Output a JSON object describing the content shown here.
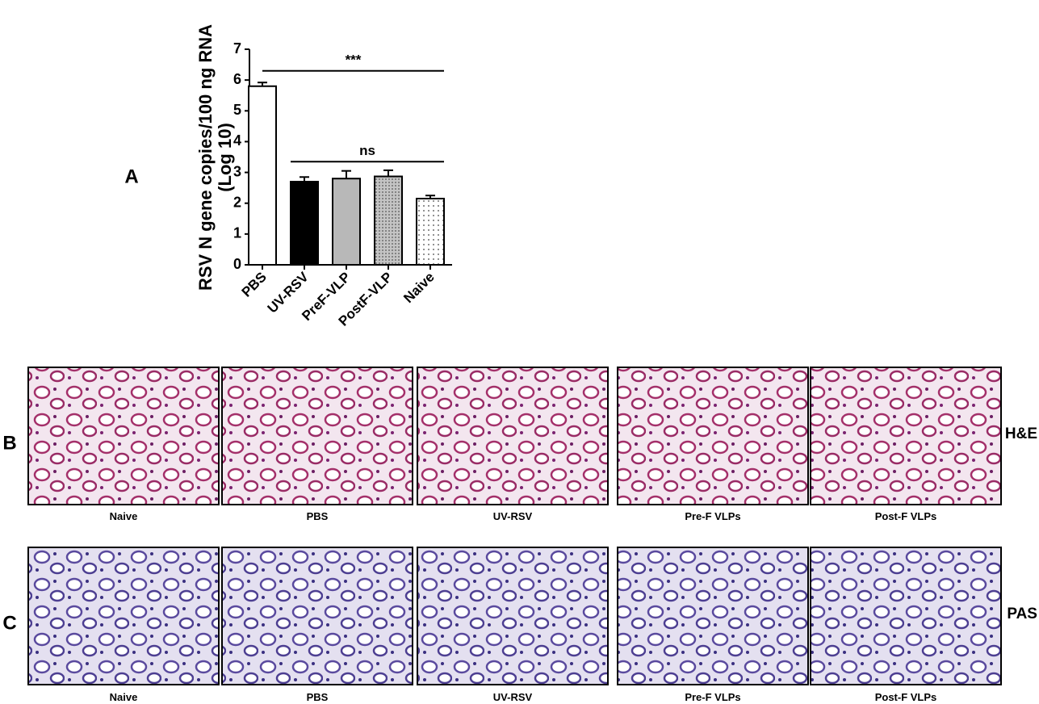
{
  "chart_data": {
    "type": "bar",
    "panel_label": "A",
    "y_label": [
      "RSV N gene copies/100 ng RNA",
      "(Log 10)"
    ],
    "categories": [
      "PBS",
      "UV-RSV",
      "PreF-VLP",
      "PostF-VLP",
      "Naive"
    ],
    "values": [
      5.8,
      2.7,
      2.8,
      2.87,
      2.15
    ],
    "errors": [
      0.12,
      0.15,
      0.25,
      0.2,
      0.1
    ],
    "colors": [
      "#ffffff",
      "#000000",
      "#b8b8b8",
      "#c4c4c4",
      "#ffffff"
    ],
    "patterns": [
      "none",
      "none",
      "none",
      "dots-dense",
      "dots"
    ],
    "ylim": [
      0,
      7
    ],
    "yticks": [
      0,
      1,
      2,
      3,
      4,
      5,
      6,
      7
    ],
    "annotations": [
      {
        "text": "***",
        "from": 0,
        "to": 4,
        "y": 6.3
      },
      {
        "text": "ns",
        "from": 1,
        "to": 4,
        "y": 3.35
      }
    ]
  },
  "panels": [
    {
      "label": "B",
      "stain": "H&E",
      "captions": [
        "Naive",
        "PBS",
        "UV-RSV",
        "Pre-F VLPs",
        "Post-F VLPs"
      ]
    },
    {
      "label": "C",
      "stain": "PAS",
      "captions": [
        "Naive",
        "PBS",
        "UV-RSV",
        "Pre-F VLPs",
        "Post-F VLPs"
      ]
    }
  ]
}
